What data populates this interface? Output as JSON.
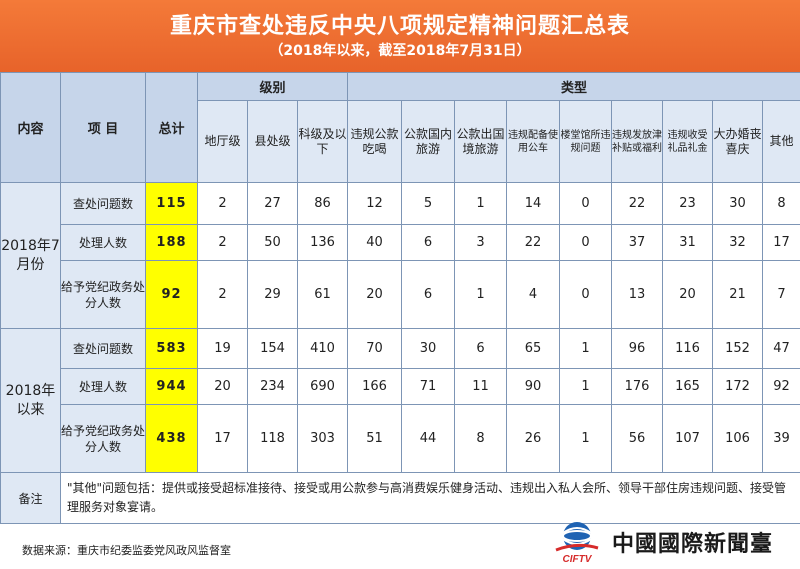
{
  "header": {
    "title": "重庆市查处违反中央八项规定精神问题汇总表",
    "subtitle": "（2018年以来，截至2018年7月31日）"
  },
  "table": {
    "col_content": "内容",
    "col_item": "项 目",
    "col_total": "总计",
    "group_level": "级别",
    "group_type": "类型",
    "level_cols": [
      "地厅级",
      "县处级",
      "科级及以下"
    ],
    "type_cols": [
      "违规公款吃喝",
      "公款国内旅游",
      "公款出国境旅游",
      "违规配备使用公车",
      "楼堂馆所违规问题",
      "违规发放津补贴或福利",
      "违规收受礼品礼金",
      "大办婚丧喜庆",
      "其他"
    ],
    "sections": [
      {
        "label": "2018年7月份",
        "rows": [
          {
            "item": "查处问题数",
            "total": "115",
            "levels": [
              "2",
              "27",
              "86"
            ],
            "types": [
              "12",
              "5",
              "1",
              "14",
              "0",
              "22",
              "23",
              "30",
              "8"
            ]
          },
          {
            "item": "处理人数",
            "total": "188",
            "levels": [
              "2",
              "50",
              "136"
            ],
            "types": [
              "40",
              "6",
              "3",
              "22",
              "0",
              "37",
              "31",
              "32",
              "17"
            ]
          },
          {
            "item": "给予党纪政务处分人数",
            "total": "92",
            "levels": [
              "2",
              "29",
              "61"
            ],
            "types": [
              "20",
              "6",
              "1",
              "4",
              "0",
              "13",
              "20",
              "21",
              "7"
            ]
          }
        ]
      },
      {
        "label": "2018年以来",
        "rows": [
          {
            "item": "查处问题数",
            "total": "583",
            "levels": [
              "19",
              "154",
              "410"
            ],
            "types": [
              "70",
              "30",
              "6",
              "65",
              "1",
              "96",
              "116",
              "152",
              "47"
            ]
          },
          {
            "item": "处理人数",
            "total": "944",
            "levels": [
              "20",
              "234",
              "690"
            ],
            "types": [
              "166",
              "71",
              "11",
              "90",
              "1",
              "176",
              "165",
              "172",
              "92"
            ]
          },
          {
            "item": "给予党纪政务处分人数",
            "total": "438",
            "levels": [
              "17",
              "118",
              "303"
            ],
            "types": [
              "51",
              "44",
              "8",
              "26",
              "1",
              "56",
              "107",
              "106",
              "39"
            ]
          }
        ]
      }
    ],
    "note_label": "备注",
    "note_text": "\"其他\"问题包括：提供或接受超标准接待、接受或用公款参与高消费娱乐健身活动、违规出入私人会所、领导干部住房违规问题、接受管理服务对象宴请。"
  },
  "footer": {
    "source": "数据来源：重庆市纪委监委党风政风监督室",
    "logo_text": "CIFTV",
    "brand": "中國國際新聞臺"
  },
  "colors": {
    "header_bg": "#e7632a",
    "header_text": "#ffffff",
    "total_highlight": "#ffff00",
    "table_header_bg": "#c6d5ea",
    "table_cell_bg": "#dfe8f4",
    "logo_blue": "#1f63b3",
    "logo_red": "#d62b2b"
  }
}
